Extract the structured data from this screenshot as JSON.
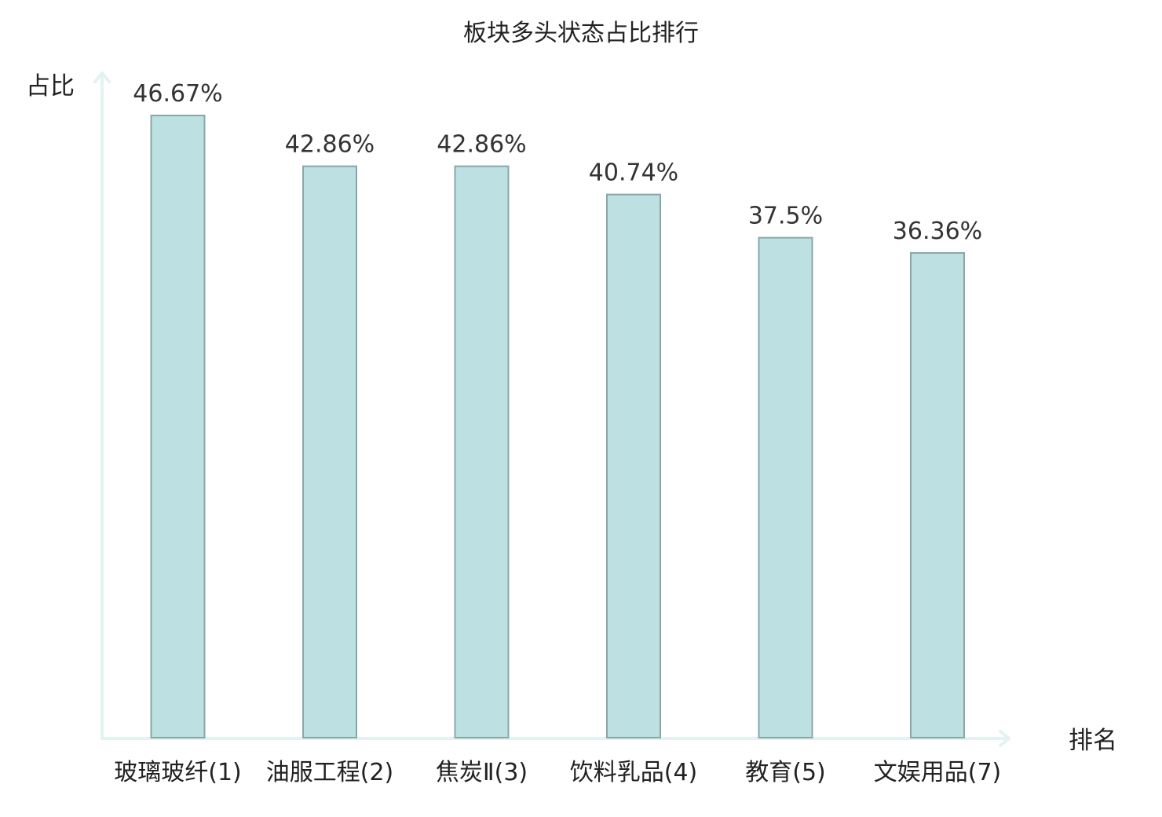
{
  "chart_data": {
    "type": "bar",
    "title": "板块多头状态占比排行",
    "xlabel": "排名",
    "ylabel": "占比",
    "categories": [
      "玻璃玻纤(1)",
      "油服工程(2)",
      "焦炭Ⅱ(3)",
      "饮料乳品(4)",
      "教育(5)",
      "文娱用品(7)"
    ],
    "values": [
      46.67,
      42.86,
      42.86,
      40.74,
      37.5,
      36.36
    ],
    "value_labels": [
      "46.67%",
      "42.86%",
      "42.86%",
      "40.74%",
      "37.5%",
      "36.36%"
    ],
    "ylim": [
      0,
      46.67
    ],
    "grid": false,
    "bar_color": "#bde0e2",
    "bar_border_color": "#8aa7a7",
    "axis_color": "#e3f3f1",
    "category_colors": [
      "#222222",
      "#222222",
      "#222222",
      "#222222",
      "#222222",
      "#e00000"
    ]
  }
}
